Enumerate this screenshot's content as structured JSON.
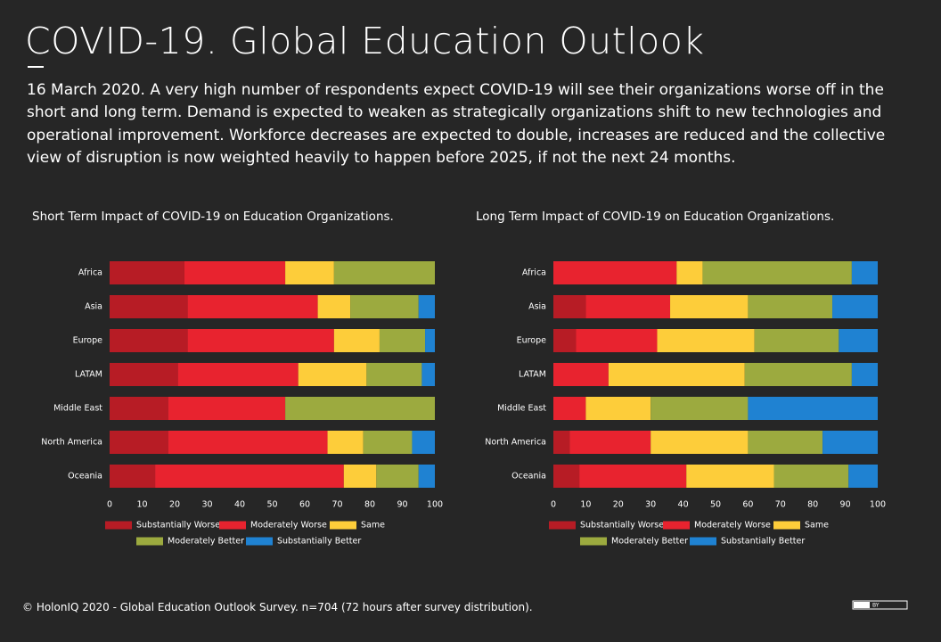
{
  "header": {
    "title": "COVID-19. Global Education Outlook",
    "description": "16 March 2020. A very high number of respondents expect COVID-19 will see their organizations worse off in the short and long term. Demand is expected to weaken as strategically organizations shift to new technologies and operational improvement. Workforce decreases are expected to double, increases are reduced and the collective view of disruption is now weighted heavily to happen before 2025, if not the next 24 months."
  },
  "chart_data": [
    {
      "type": "bar",
      "stacked": true,
      "title": "Short Term Impact of COVID-19 on Education Organizations.",
      "categories": [
        "Africa",
        "Asia",
        "Europe",
        "LATAM",
        "Middle East",
        "North America",
        "Oceania"
      ],
      "series": [
        {
          "name": "Substantially Worse",
          "color": "#b71c25",
          "values": [
            23,
            24,
            24,
            21,
            18,
            18,
            14
          ]
        },
        {
          "name": "Moderately Worse",
          "color": "#e8232f",
          "values": [
            31,
            40,
            45,
            37,
            36,
            49,
            58
          ]
        },
        {
          "name": "Same",
          "color": "#fdcd3a",
          "values": [
            15,
            10,
            14,
            21,
            0,
            11,
            10
          ]
        },
        {
          "name": "Moderately Better",
          "color": "#9caa3f",
          "values": [
            31,
            21,
            14,
            17,
            46,
            15,
            13
          ]
        },
        {
          "name": "Substantially Better",
          "color": "#1f82d2",
          "values": [
            0,
            5,
            3,
            4,
            0,
            7,
            5
          ]
        }
      ],
      "xlim": [
        0,
        100
      ],
      "xticks": [
        0,
        10,
        20,
        30,
        40,
        50,
        60,
        70,
        80,
        90,
        100
      ]
    },
    {
      "type": "bar",
      "stacked": true,
      "title": "Long Term Impact of COVID-19 on Education Organizations.",
      "categories": [
        "Africa",
        "Asia",
        "Europe",
        "LATAM",
        "Middle East",
        "North America",
        "Oceania"
      ],
      "series": [
        {
          "name": "Substantially Worse",
          "color": "#b71c25",
          "values": [
            0,
            10,
            7,
            0,
            0,
            5,
            8
          ]
        },
        {
          "name": "Moderately Worse",
          "color": "#e8232f",
          "values": [
            38,
            26,
            25,
            17,
            10,
            25,
            33
          ]
        },
        {
          "name": "Same",
          "color": "#fdcd3a",
          "values": [
            8,
            24,
            30,
            42,
            20,
            30,
            27
          ]
        },
        {
          "name": "Moderately Better",
          "color": "#9caa3f",
          "values": [
            46,
            26,
            26,
            33,
            30,
            23,
            23
          ]
        },
        {
          "name": "Substantially Better",
          "color": "#1f82d2",
          "values": [
            8,
            14,
            12,
            8,
            40,
            17,
            9
          ]
        }
      ],
      "xlim": [
        0,
        100
      ],
      "xticks": [
        0,
        10,
        20,
        30,
        40,
        50,
        60,
        70,
        80,
        90,
        100
      ]
    }
  ],
  "footer": {
    "text": "© HolonIQ 2020 - Global Education Outlook Survey. n=704 (72 hours after survey distribution).",
    "license": "BY"
  }
}
